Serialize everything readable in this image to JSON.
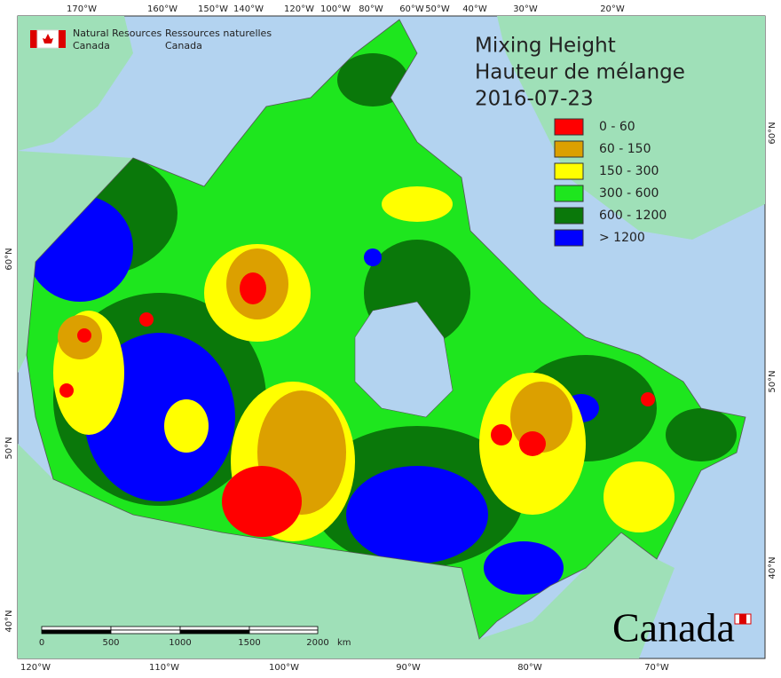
{
  "header": {
    "agency_en": [
      "Natural Resources",
      "Canada"
    ],
    "agency_fr": [
      "Ressources naturelles",
      "Canada"
    ]
  },
  "title": [
    "Mixing Height",
    "Hauteur de mélange",
    "2016-07-23"
  ],
  "legend": [
    {
      "label": "0 - 60",
      "color": "#ff0000"
    },
    {
      "label": "60 - 150",
      "color": "#dca000"
    },
    {
      "label": "150 - 300",
      "color": "#ffff00"
    },
    {
      "label": "300 - 600",
      "color": "#1ee61e"
    },
    {
      "label": "600 - 1200",
      "color": "#0a780a"
    },
    {
      "label": "> 1200",
      "color": "#0000ff"
    }
  ],
  "top_axis": [
    "170°W",
    "160°W",
    "150°W",
    "140°W",
    "120°W",
    "100°W",
    "80°W",
    "60°W",
    "50°W",
    "40°W",
    "30°W",
    "20°W"
  ],
  "bottom_axis": [
    "120°W",
    "110°W",
    "100°W",
    "90°W",
    "80°W",
    "70°W"
  ],
  "left_axis": [
    "60°N",
    "50°N",
    "40°N"
  ],
  "right_axis": [
    "60°N",
    "50°N",
    "40°N"
  ],
  "scale_bar": {
    "ticks": [
      "0",
      "500",
      "1000",
      "1500",
      "2000"
    ],
    "unit": "km"
  },
  "wordmark": "Canada"
}
